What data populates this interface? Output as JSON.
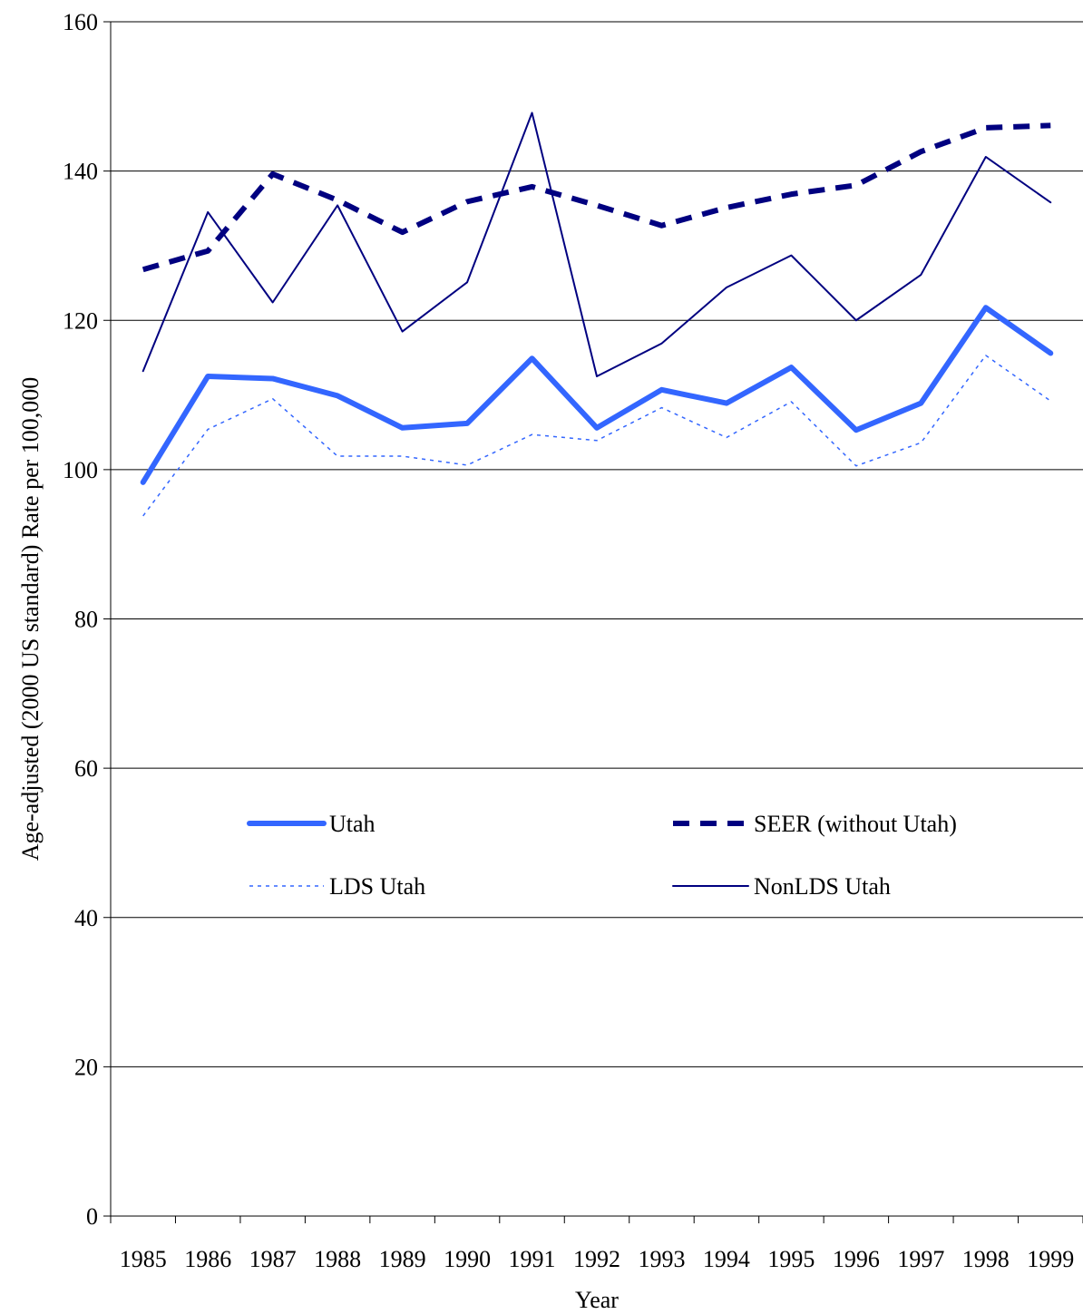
{
  "chart_data": {
    "type": "line",
    "title": "",
    "xlabel": "Year",
    "ylabel": "Age-adjusted (2000 US standard) Rate per 100,000",
    "ylim": [
      0,
      160
    ],
    "yticks": [
      0,
      20,
      40,
      60,
      80,
      100,
      120,
      140,
      160
    ],
    "categories": [
      "1985",
      "1986",
      "1987",
      "1988",
      "1989",
      "1990",
      "1991",
      "1992",
      "1993",
      "1994",
      "1995",
      "1996",
      "1997",
      "1998",
      "1999"
    ],
    "grid": "horizontal",
    "legend_position": "center",
    "series": [
      {
        "name": "Utah",
        "color": "#3366ff",
        "style": "thick-solid",
        "values": [
          98.3,
          112.5,
          112.2,
          109.9,
          105.6,
          106.2,
          114.9,
          105.6,
          110.7,
          108.9,
          113.7,
          105.3,
          108.9,
          121.7,
          115.6
        ]
      },
      {
        "name": "SEER (without Utah)",
        "color": "#000080",
        "style": "thick-dashed",
        "values": [
          126.8,
          129.3,
          139.6,
          136.1,
          131.8,
          135.9,
          137.9,
          135.4,
          132.7,
          135.1,
          136.9,
          138.1,
          142.6,
          145.8,
          146.1
        ]
      },
      {
        "name": "LDS Utah",
        "color": "#3366ff",
        "style": "dotted",
        "values": [
          93.8,
          105.4,
          109.5,
          101.8,
          101.8,
          100.6,
          104.7,
          103.9,
          108.3,
          104.3,
          109.1,
          100.5,
          103.6,
          115.3,
          109.2
        ]
      },
      {
        "name": "NonLDS Utah",
        "color": "#000080",
        "style": "thin-solid",
        "values": [
          113.2,
          134.5,
          122.4,
          135.4,
          118.5,
          125.1,
          147.8,
          112.5,
          116.9,
          124.4,
          128.7,
          120.0,
          126.1,
          141.9,
          135.8
        ]
      }
    ]
  }
}
